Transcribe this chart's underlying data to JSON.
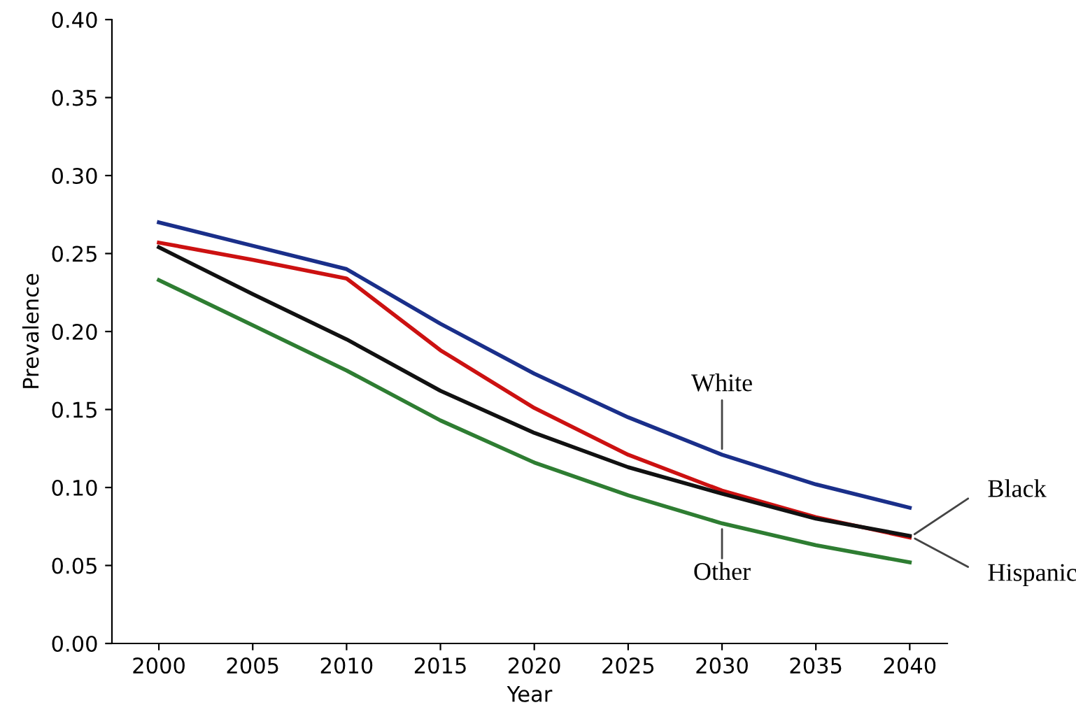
{
  "chart_data": {
    "type": "line",
    "xlabel": "Year",
    "ylabel": "Prevalence",
    "x": [
      2000,
      2005,
      2010,
      2015,
      2020,
      2025,
      2030,
      2035,
      2040
    ],
    "xlim": [
      1997.5,
      2042
    ],
    "xticks": [
      2000,
      2005,
      2010,
      2015,
      2020,
      2025,
      2030,
      2035,
      2040
    ],
    "ylim": [
      0,
      0.4
    ],
    "yticks": [
      {
        "value": 0,
        "label": "0.00"
      },
      {
        "value": 0.05,
        "label": "0.05"
      },
      {
        "value": 0.1,
        "label": "0.10"
      },
      {
        "value": 0.15,
        "label": "0.15"
      },
      {
        "value": 0.2,
        "label": "0.20"
      },
      {
        "value": 0.25,
        "label": "0.25"
      },
      {
        "value": 0.3,
        "label": "0.30"
      },
      {
        "value": 0.35,
        "label": "0.35"
      },
      {
        "value": 0.4,
        "label": "0.40"
      }
    ],
    "grid": false,
    "legend": false,
    "marker": "none",
    "line_style": "solid",
    "series": [
      {
        "name": "White",
        "color": "#1a2f8a",
        "values": [
          0.27,
          0.255,
          0.24,
          0.205,
          0.173,
          0.145,
          0.121,
          0.102,
          0.087
        ]
      },
      {
        "name": "Black",
        "color": "#cc1111",
        "values": [
          0.257,
          0.246,
          0.234,
          0.188,
          0.151,
          0.121,
          0.098,
          0.081,
          0.068
        ]
      },
      {
        "name": "Other",
        "color": "#2e7d32",
        "values": [
          0.233,
          0.204,
          0.175,
          0.143,
          0.116,
          0.095,
          0.077,
          0.063,
          0.052
        ]
      },
      {
        "name": "Hispanic",
        "color": "#111111",
        "values": [
          0.254,
          0.224,
          0.195,
          0.162,
          0.135,
          0.113,
          0.096,
          0.08,
          0.069
        ]
      }
    ]
  }
}
